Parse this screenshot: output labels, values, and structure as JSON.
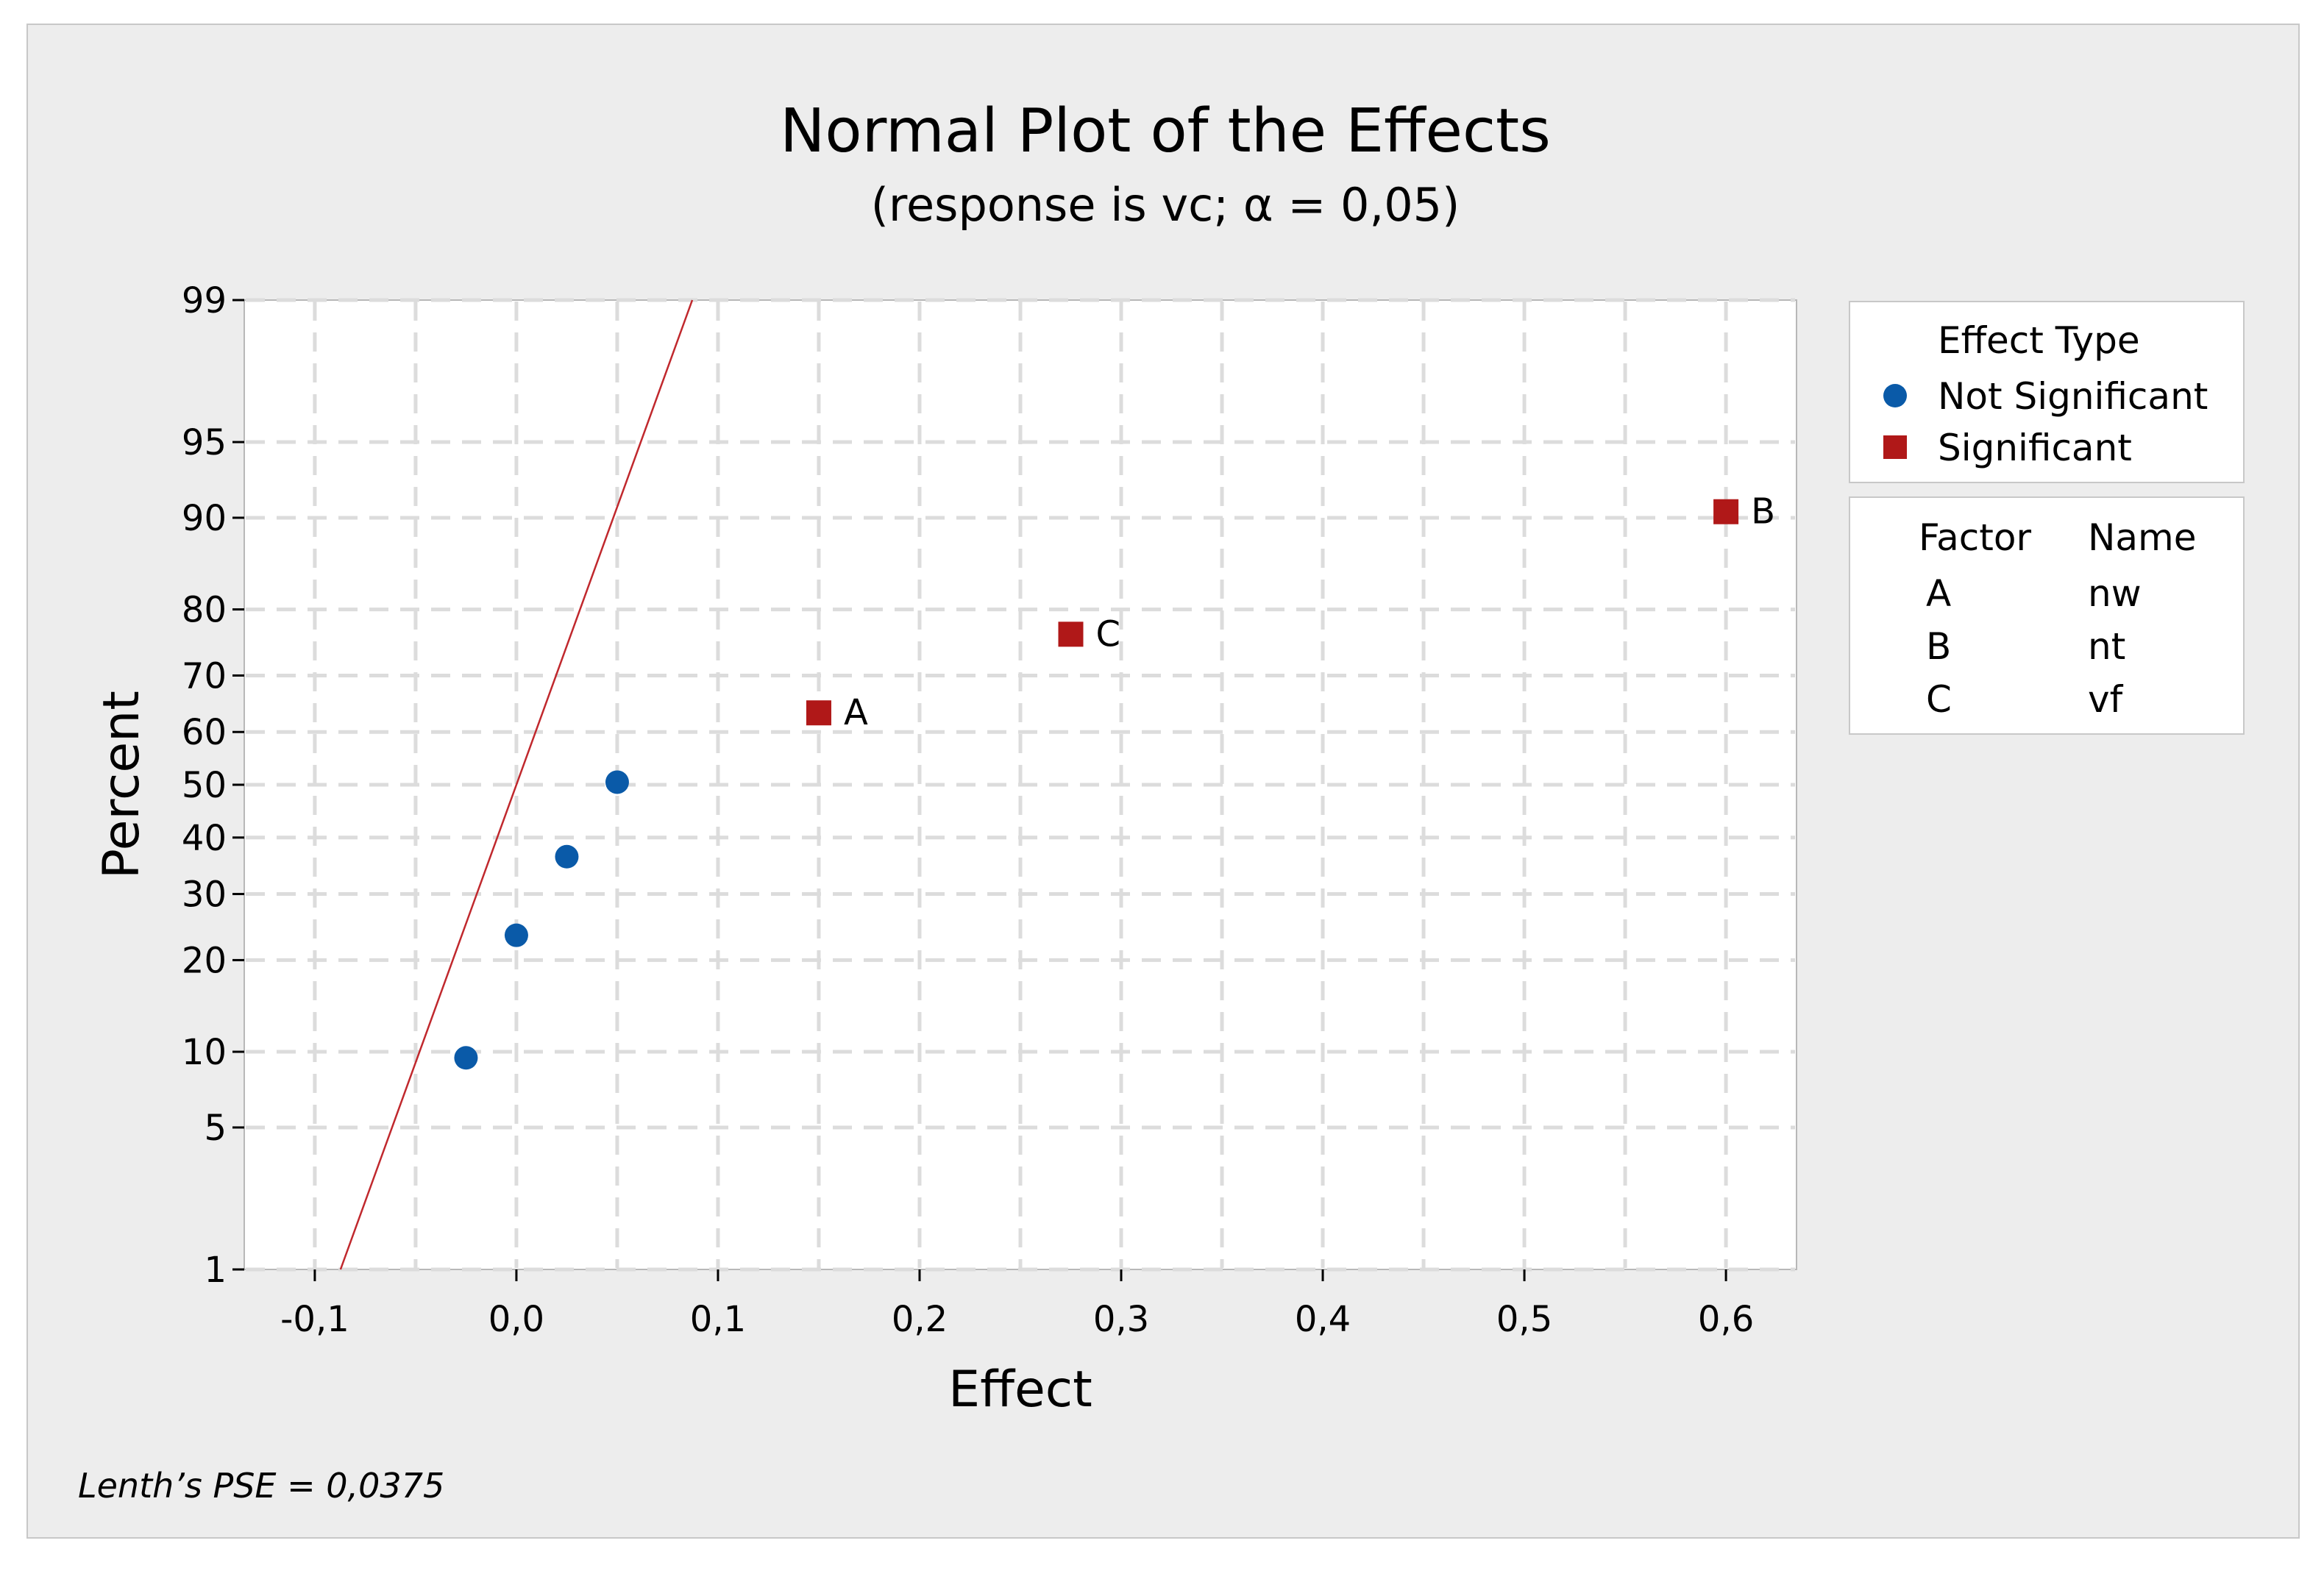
{
  "chart_data": {
    "type": "scatter",
    "title": "Normal Plot of the Effects",
    "subtitle": "(response is vc; α = 0,05)",
    "xlabel": "Effect",
    "ylabel": "Percent",
    "xlim": [
      -0.135,
      0.635
    ],
    "x_ticks": [
      -0.1,
      0.0,
      0.1,
      0.2,
      0.3,
      0.4,
      0.5,
      0.6
    ],
    "x_tick_labels": [
      "-0,1",
      "0,0",
      "0,1",
      "0,2",
      "0,3",
      "0,4",
      "0,5",
      "0,6"
    ],
    "x_minor_gridlines": [
      -0.05,
      0.05,
      0.15,
      0.25,
      0.35,
      0.45,
      0.55
    ],
    "y_scale": "normal-probability",
    "ylim": [
      1,
      99
    ],
    "y_ticks": [
      1,
      5,
      10,
      20,
      30,
      40,
      50,
      60,
      70,
      80,
      90,
      95,
      99
    ],
    "y_tick_labels": [
      "1",
      "5",
      "10",
      "20",
      "30",
      "40",
      "50",
      "60",
      "70",
      "80",
      "90",
      "95",
      "99"
    ],
    "grid": true,
    "reference_line": {
      "mean": 0.0,
      "sigma": 0.0375,
      "color": "#c0282d"
    },
    "series": [
      {
        "name": "Not Significant",
        "marker": "circle",
        "color": "#0a5aa8",
        "points": [
          {
            "x": -0.025,
            "y": 9.5,
            "label": ""
          },
          {
            "x": 0.0,
            "y": 23.5,
            "label": ""
          },
          {
            "x": 0.025,
            "y": 36.5,
            "label": ""
          },
          {
            "x": 0.05,
            "y": 50.5,
            "label": ""
          }
        ]
      },
      {
        "name": "Significant",
        "marker": "square",
        "color": "#b01818",
        "points": [
          {
            "x": 0.15,
            "y": 63.5,
            "label": "A"
          },
          {
            "x": 0.275,
            "y": 76.5,
            "label": "C"
          },
          {
            "x": 0.6,
            "y": 90.5,
            "label": "B"
          }
        ]
      }
    ],
    "legend": {
      "position": "right",
      "title": "Effect Type",
      "entries": [
        "Not Significant",
        "Significant"
      ]
    },
    "factor_table": {
      "headers": [
        "Factor",
        "Name"
      ],
      "rows": [
        [
          "A",
          "nw"
        ],
        [
          "B",
          "nt"
        ],
        [
          "C",
          "vf"
        ]
      ]
    },
    "footnote": "Lenth’s PSE = 0,0375"
  }
}
